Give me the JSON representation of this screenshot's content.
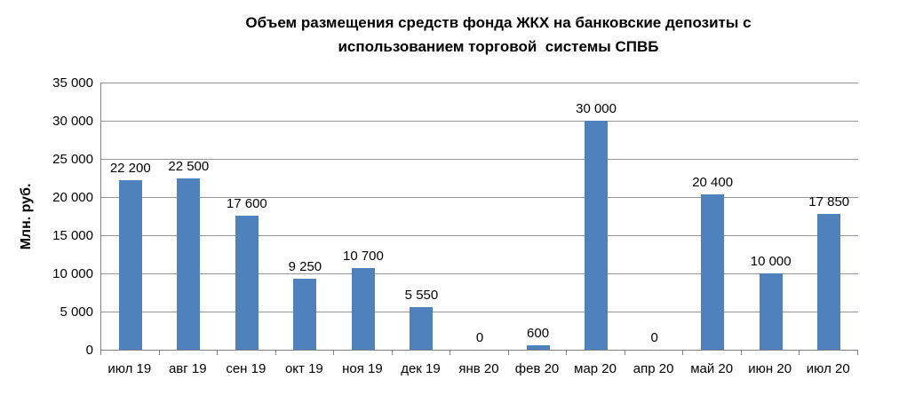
{
  "chart_data": {
    "type": "bar",
    "title": "Объем размещения средств фонда ЖКХ на банковские депозиты с\nиспользованием торговой  системы СПВБ",
    "xlabel": "",
    "ylabel": "Млн. руб.",
    "categories": [
      "июл 19",
      "авг 19",
      "сен 19",
      "окт 19",
      "ноя 19",
      "дек 19",
      "янв 20",
      "фев 20",
      "мар 20",
      "апр 20",
      "май 20",
      "июн 20",
      "июл 20"
    ],
    "values": [
      22200,
      22500,
      17600,
      9250,
      10700,
      5550,
      0,
      600,
      30000,
      0,
      20400,
      10000,
      17850
    ],
    "value_labels": [
      "22 200",
      "22 500",
      "17 600",
      "9 250",
      "10 700",
      "5 550",
      "0",
      "600",
      "30 000",
      "0",
      "20 400",
      "10 000",
      "17 850"
    ],
    "ylim": [
      0,
      35000
    ],
    "y_ticks": [
      0,
      5000,
      10000,
      15000,
      20000,
      25000,
      30000,
      35000
    ],
    "y_tick_labels": [
      "0",
      "5 000",
      "10 000",
      "15 000",
      "20 000",
      "25 000",
      "30 000",
      "35 000"
    ],
    "grid": true,
    "legend": "none",
    "colors": {
      "bar_fill": "#4F81BD",
      "gridline": "#969696",
      "axis_line": "#808080",
      "text": "#000000",
      "background": "#FFFFFF"
    }
  }
}
